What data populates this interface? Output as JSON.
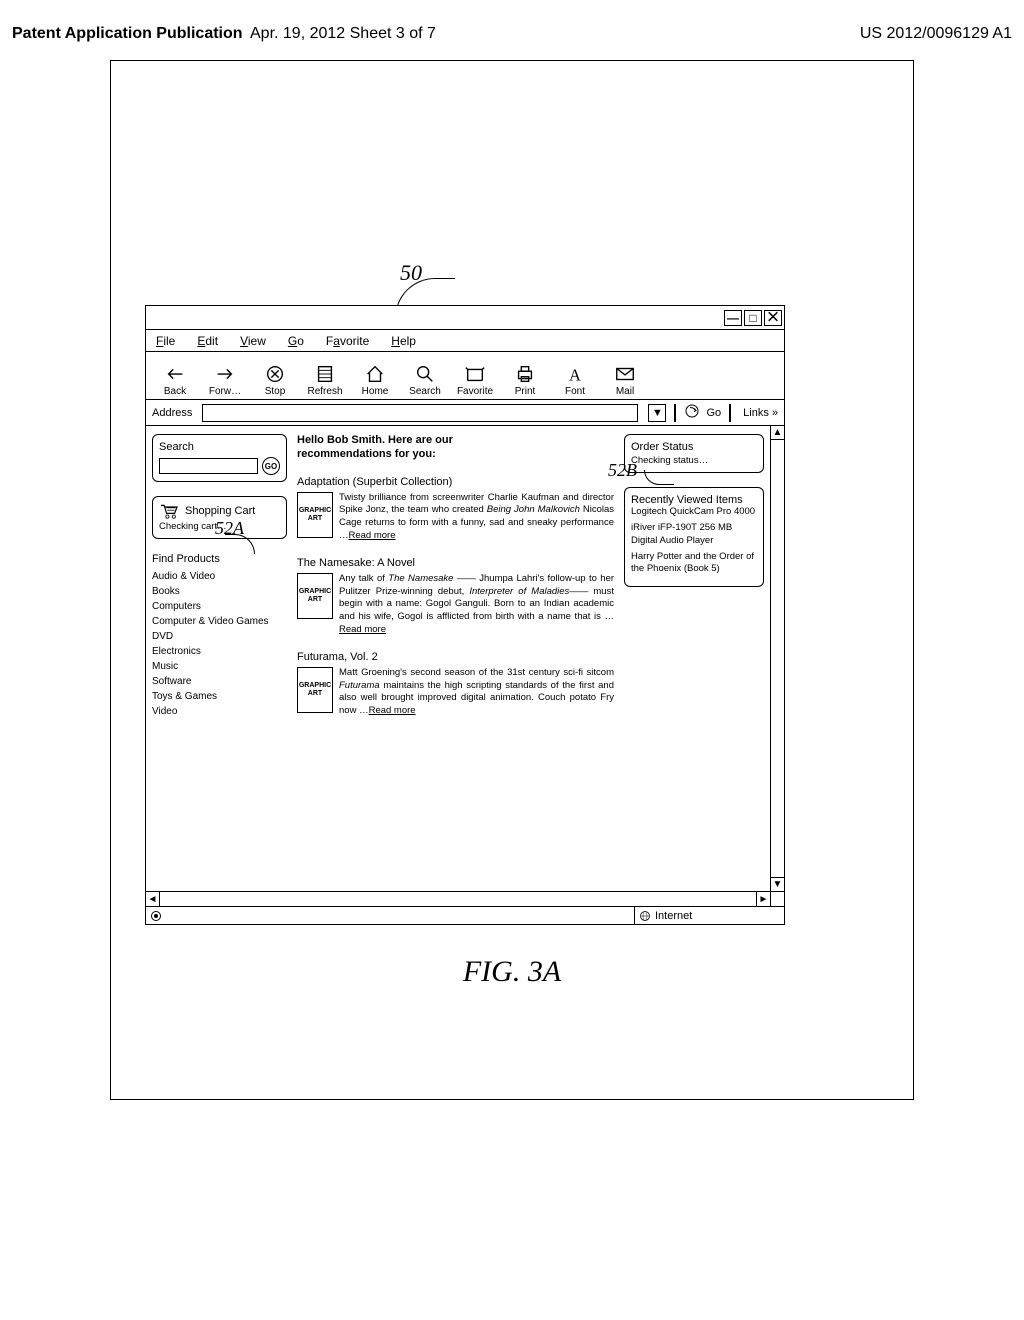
{
  "header": {
    "left": "Patent Application Publication",
    "center": "Apr. 19, 2012  Sheet 3 of 7",
    "right": "US 2012/0096129 A1"
  },
  "refs": {
    "r50": "50",
    "r52A": "52A",
    "r52B": "52B"
  },
  "figure_label": "FIG.  3A",
  "window": {
    "min": "—",
    "max": "□",
    "close": "⨉"
  },
  "menu": [
    "File",
    "Edit",
    "View",
    "Go",
    "Favorite",
    "Help"
  ],
  "toolbar": [
    {
      "icon": "back",
      "label": "Back"
    },
    {
      "icon": "forward",
      "label": "Forw…"
    },
    {
      "icon": "stop",
      "label": "Stop"
    },
    {
      "icon": "refresh",
      "label": "Refresh"
    },
    {
      "icon": "home",
      "label": "Home"
    },
    {
      "icon": "search",
      "label": "Search"
    },
    {
      "icon": "favorite",
      "label": "Favorite"
    },
    {
      "icon": "print",
      "label": "Print"
    },
    {
      "icon": "font",
      "label": "Font"
    },
    {
      "icon": "mail",
      "label": "Mail"
    }
  ],
  "addr": {
    "label": "Address",
    "go": "Go",
    "links": "Links »"
  },
  "left_col": {
    "search_title": "Search",
    "go_btn": "GO",
    "cart_label": "Shopping Cart",
    "cart_status": "Checking cart…",
    "find_title": "Find Products",
    "categories": [
      "Audio & Video",
      "Books",
      "Computers",
      "Computer & Video Games",
      "DVD",
      "Electronics",
      "Music",
      "Software",
      "Toys & Games",
      "Video"
    ]
  },
  "mid_col": {
    "greeting": "Hello Bob Smith. Here are our recommendations for you:",
    "graphic_art": "GRAPHIC ART",
    "read_more": "Read more",
    "recs": [
      {
        "title": "Adaptation (Superbit Collection)",
        "text_a": "Twisty brilliance from screenwriter Charlie Kaufman and director Spike Jonz, the team who created ",
        "ital": "Being John Malkovich",
        "text_b": " Nicolas Cage returns to form with a funny, sad and sneaky performance …"
      },
      {
        "title": "The Namesake: A Novel",
        "text_a": "Any talk of ",
        "ital": "The Namesake",
        "text_b": " —— Jhumpa Lahri's follow-up to her Pulitzer Prize-winning debut, ",
        "ital2": "Interpreter of Maladies",
        "text_c": "—— must begin with a name: Gogol Ganguli. Born to an Indian academic and his wife, Gogol is afflicted from birth with a name that is …"
      },
      {
        "title": "Futurama, Vol. 2",
        "text_a": "Matt Groening's second season of the 31st century sci-fi sitcom ",
        "ital": "Futurama",
        "text_b": " maintains the high scripting standards of the first and also well brought improved digital animation. Couch potato Fry now …"
      }
    ]
  },
  "right_col": {
    "order_title": "Order Status",
    "order_status": "Checking status…",
    "recent_title": "Recently Viewed Items",
    "recent": [
      "Logitech QuickCam Pro 4000",
      "iRiver iFP-190T 256 MB Digital Audio Player",
      "Harry Potter and the Order of the Phoenix (Book 5)"
    ]
  },
  "status": {
    "zone": "Internet"
  }
}
